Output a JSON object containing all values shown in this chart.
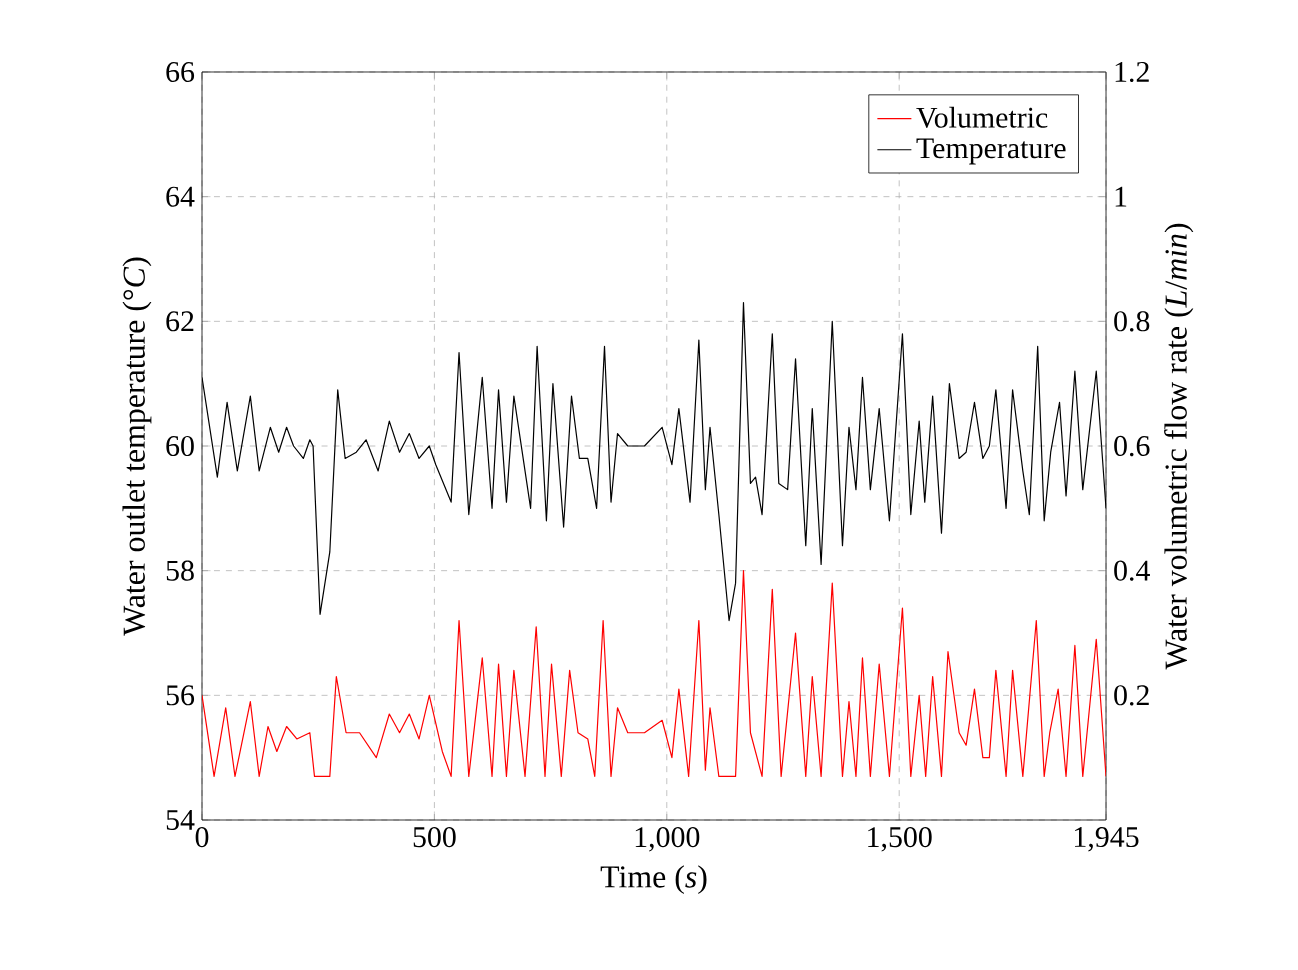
{
  "chart_data": {
    "type": "line",
    "xlabel": "Time (*s*)",
    "ylabel": "Water outlet temperature (°*C*)",
    "y2label": "Water volumetric flow rate (*L*/*min*)",
    "xlim": [
      0,
      1945
    ],
    "xticks": [
      0,
      500,
      {
        "value": 1000,
        "label": "1,000"
      },
      {
        "value": 1500,
        "label": "1,500"
      },
      {
        "value": 1945,
        "label": "1,945"
      }
    ],
    "ylim": [
      54,
      66
    ],
    "yticks": [
      54,
      56,
      58,
      60,
      62,
      64,
      66
    ],
    "y2lim": [
      0,
      1.2
    ],
    "y2ticks": [
      0.2,
      0.4,
      0.6,
      0.8,
      1,
      1.2
    ],
    "grid": true,
    "legend": "top right",
    "marker": "none",
    "line_style": "solid",
    "series": [
      {
        "name": "Volumetric",
        "color": "#ff0000",
        "axis": "y2",
        "x": [
          0,
          26,
          51,
          71,
          104,
          123,
          142,
          161,
          182,
          204,
          232,
          242,
          275,
          289,
          310,
          339,
          375,
          403,
          425,
          446,
          467,
          489,
          517,
          536,
          553,
          574,
          603,
          624,
          638,
          655,
          671,
          695,
          719,
          738,
          752,
          773,
          791,
          809,
          830,
          845,
          863,
          880,
          894,
          916,
          952,
          990,
          1011,
          1026,
          1047,
          1069,
          1083,
          1093,
          1112,
          1148,
          1165,
          1180,
          1205,
          1227,
          1246,
          1277,
          1299,
          1313,
          1332,
          1356,
          1378,
          1392,
          1407,
          1421,
          1438,
          1457,
          1479,
          1507,
          1525,
          1543,
          1557,
          1572,
          1591,
          1605,
          1629,
          1644,
          1662,
          1680,
          1694,
          1708,
          1730,
          1744,
          1766,
          1795,
          1812,
          1824,
          1842,
          1859,
          1878,
          1895,
          1924,
          1945
        ],
        "values": [
          0.2,
          0.07,
          0.18,
          0.07,
          0.19,
          0.07,
          0.15,
          0.11,
          0.15,
          0.13,
          0.14,
          0.07,
          0.07,
          0.23,
          0.14,
          0.14,
          0.1,
          0.17,
          0.14,
          0.17,
          0.13,
          0.2,
          0.11,
          0.07,
          0.32,
          0.07,
          0.26,
          0.07,
          0.25,
          0.07,
          0.24,
          0.07,
          0.31,
          0.07,
          0.25,
          0.07,
          0.24,
          0.14,
          0.13,
          0.07,
          0.32,
          0.07,
          0.18,
          0.14,
          0.14,
          0.16,
          0.1,
          0.21,
          0.07,
          0.32,
          0.08,
          0.18,
          0.07,
          0.07,
          0.4,
          0.14,
          0.07,
          0.37,
          0.07,
          0.3,
          0.07,
          0.23,
          0.07,
          0.38,
          0.07,
          0.19,
          0.07,
          0.26,
          0.07,
          0.25,
          0.07,
          0.34,
          0.07,
          0.2,
          0.07,
          0.23,
          0.07,
          0.27,
          0.14,
          0.12,
          0.21,
          0.1,
          0.1,
          0.24,
          0.07,
          0.24,
          0.07,
          0.32,
          0.07,
          0.14,
          0.21,
          0.07,
          0.28,
          0.07,
          0.29,
          0.07
        ]
      },
      {
        "name": "Temperature",
        "color": "#000000",
        "x": [
          0,
          33,
          54,
          76,
          104,
          123,
          147,
          165,
          182,
          197,
          218,
          232,
          239,
          254,
          275,
          292,
          308,
          332,
          353,
          379,
          403,
          425,
          446,
          467,
          489,
          503,
          536,
          553,
          574,
          603,
          624,
          638,
          655,
          671,
          707,
          721,
          741,
          755,
          778,
          795,
          812,
          830,
          849,
          866,
          880,
          894,
          916,
          952,
          990,
          1011,
          1026,
          1050,
          1069,
          1083,
          1093,
          1112,
          1134,
          1148,
          1165,
          1180,
          1191,
          1205,
          1227,
          1241,
          1260,
          1277,
          1299,
          1313,
          1332,
          1356,
          1378,
          1392,
          1407,
          1421,
          1438,
          1457,
          1479,
          1507,
          1525,
          1543,
          1555,
          1572,
          1591,
          1608,
          1629,
          1644,
          1662,
          1680,
          1694,
          1708,
          1730,
          1744,
          1766,
          1780,
          1798,
          1812,
          1826,
          1845,
          1859,
          1878,
          1895,
          1924,
          1945
        ],
        "values": [
          61.1,
          59.5,
          60.7,
          59.6,
          60.8,
          59.6,
          60.3,
          59.9,
          60.3,
          60.0,
          59.8,
          60.1,
          60.0,
          57.3,
          58.3,
          60.9,
          59.8,
          59.9,
          60.1,
          59.6,
          60.4,
          59.9,
          60.2,
          59.8,
          60.0,
          59.7,
          59.1,
          61.5,
          58.9,
          61.1,
          59.0,
          60.9,
          59.1,
          60.8,
          59.0,
          61.6,
          58.8,
          61.0,
          58.7,
          60.8,
          59.8,
          59.8,
          59.0,
          61.6,
          59.1,
          60.2,
          60.0,
          60.0,
          60.3,
          59.7,
          60.6,
          59.1,
          61.7,
          59.3,
          60.3,
          58.9,
          57.2,
          57.8,
          62.3,
          59.4,
          59.5,
          58.9,
          61.8,
          59.4,
          59.3,
          61.4,
          58.4,
          60.6,
          58.1,
          62.0,
          58.4,
          60.3,
          59.3,
          61.1,
          59.3,
          60.6,
          58.8,
          61.8,
          58.9,
          60.4,
          59.1,
          60.8,
          58.6,
          61.0,
          59.8,
          59.9,
          60.7,
          59.8,
          60.0,
          60.9,
          59.0,
          60.9,
          59.6,
          58.9,
          61.6,
          58.8,
          59.9,
          60.7,
          59.2,
          61.2,
          59.3,
          61.2,
          59.0
        ]
      }
    ]
  }
}
